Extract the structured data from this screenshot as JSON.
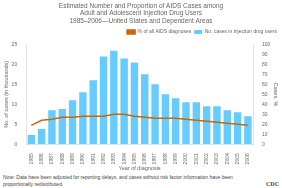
{
  "chart_data": {
    "type": "bar",
    "title": [
      "Estimated Number and Proportion of AIDS Cases among",
      "Adult and Adolescent Injection Drug Users",
      "1985–2006—United States and Dependent Areas"
    ],
    "xlabel": "Year of diagnosis",
    "ylabel": "No. of cases (in thousands)",
    "y2label": "Cases, %",
    "categories": [
      "1985",
      "1986",
      "1987",
      "1988",
      "1989",
      "1990",
      "1991",
      "1992",
      "1993",
      "1994",
      "1995",
      "1996",
      "1997",
      "1998",
      "1999",
      "2000",
      "2001",
      "2002",
      "2003",
      "2004",
      "2005",
      "2006"
    ],
    "series": [
      {
        "name": "No. cases in injection drug users",
        "type": "bar",
        "color": "#66CCFF",
        "values": [
          2.3,
          3.8,
          8.5,
          8.8,
          11.0,
          13.0,
          16.0,
          22.0,
          23.4,
          21.5,
          20.5,
          17.5,
          15.0,
          12.5,
          11.5,
          10.5,
          10.5,
          9.5,
          9.5,
          8.5,
          8.0,
          7.0
        ]
      },
      {
        "name": "% of all AIDS diagnoses",
        "type": "line",
        "axis": "y2",
        "color": "#CC6600",
        "values": [
          19,
          24,
          25,
          27,
          27,
          28,
          28,
          28,
          30,
          30,
          28,
          27,
          26,
          26,
          26,
          25,
          24,
          23,
          22,
          21,
          20,
          19
        ]
      }
    ],
    "ylim": [
      0,
      25
    ],
    "yticks": [
      0,
      5,
      10,
      15,
      20,
      25
    ],
    "y2lim": [
      0,
      100
    ],
    "y2ticks": [
      0,
      10,
      20,
      30,
      40,
      50,
      60,
      70,
      80,
      90,
      100
    ],
    "grid": false,
    "legend": "upper right",
    "annotations": [
      "Note: Data have been adjusted for reporting delays, and cases without risk factor information have been\nproportionally redistributed.",
      "CDC"
    ]
  }
}
